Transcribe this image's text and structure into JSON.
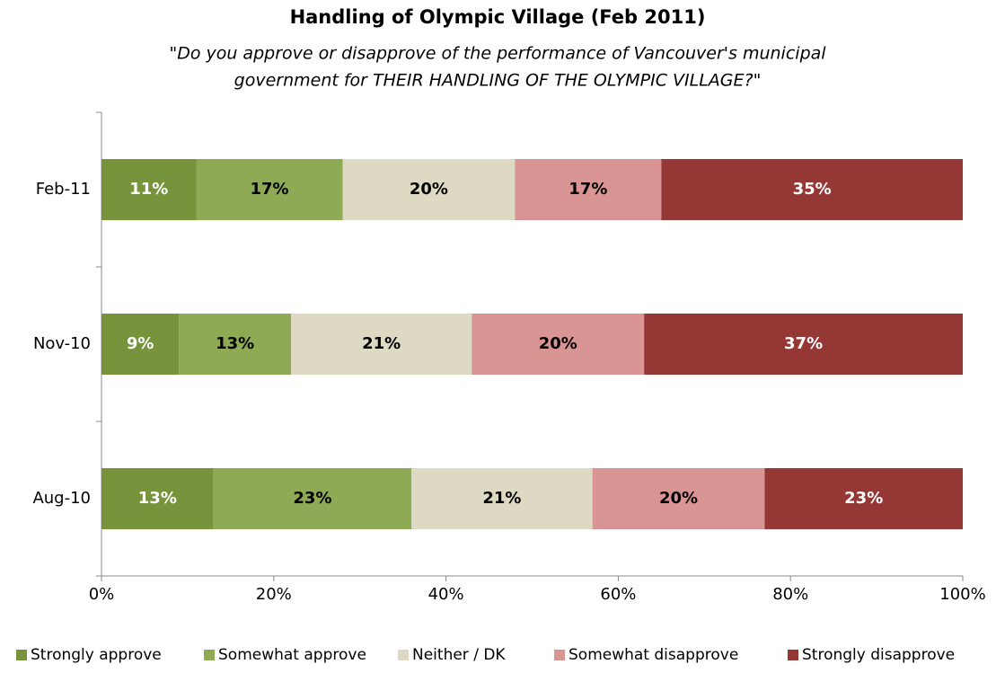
{
  "chart_data": {
    "type": "stacked_barh",
    "title": "Handling of Olympic Village (Feb 2011)",
    "subtitle": [
      "\"Do you approve or disapprove of the performance of Vancouver's municipal",
      "government for THEIR HANDLING OF THE OLYMPIC VILLAGE?\""
    ],
    "categories": [
      "Feb-11",
      "Nov-10",
      "Aug-10"
    ],
    "series": [
      {
        "name": "Strongly approve",
        "color": "#77933c",
        "label_color": "#ffffff",
        "values": [
          11,
          9,
          13
        ],
        "value_labels": [
          "11%",
          "9%",
          "13%"
        ]
      },
      {
        "name": "Somewhat approve",
        "color": "#8eaa54",
        "label_color": "#000000",
        "values": [
          17,
          13,
          23
        ],
        "value_labels": [
          "17%",
          "13%",
          "23%"
        ]
      },
      {
        "name": "Neither / DK",
        "color": "#ddd9c3",
        "label_color": "#000000",
        "values": [
          20,
          21,
          21
        ],
        "value_labels": [
          "20%",
          "21%",
          "21%"
        ]
      },
      {
        "name": "Somewhat disapprove",
        "color": "#d99594",
        "label_color": "#000000",
        "values": [
          17,
          20,
          20
        ],
        "value_labels": [
          "17%",
          "20%",
          "20%"
        ]
      },
      {
        "name": "Strongly disapprove",
        "color": "#953735",
        "label_color": "#ffffff",
        "values": [
          35,
          37,
          23
        ],
        "value_labels": [
          "35%",
          "37%",
          "23%"
        ]
      }
    ],
    "xlim": [
      0,
      100
    ],
    "xticks": [
      {
        "value": 0,
        "label": "0%"
      },
      {
        "value": 20,
        "label": "20%"
      },
      {
        "value": 40,
        "label": "40%"
      },
      {
        "value": 60,
        "label": "60%"
      },
      {
        "value": 80,
        "label": "80%"
      },
      {
        "value": 100,
        "label": "100%"
      }
    ],
    "legend": "bottom"
  }
}
